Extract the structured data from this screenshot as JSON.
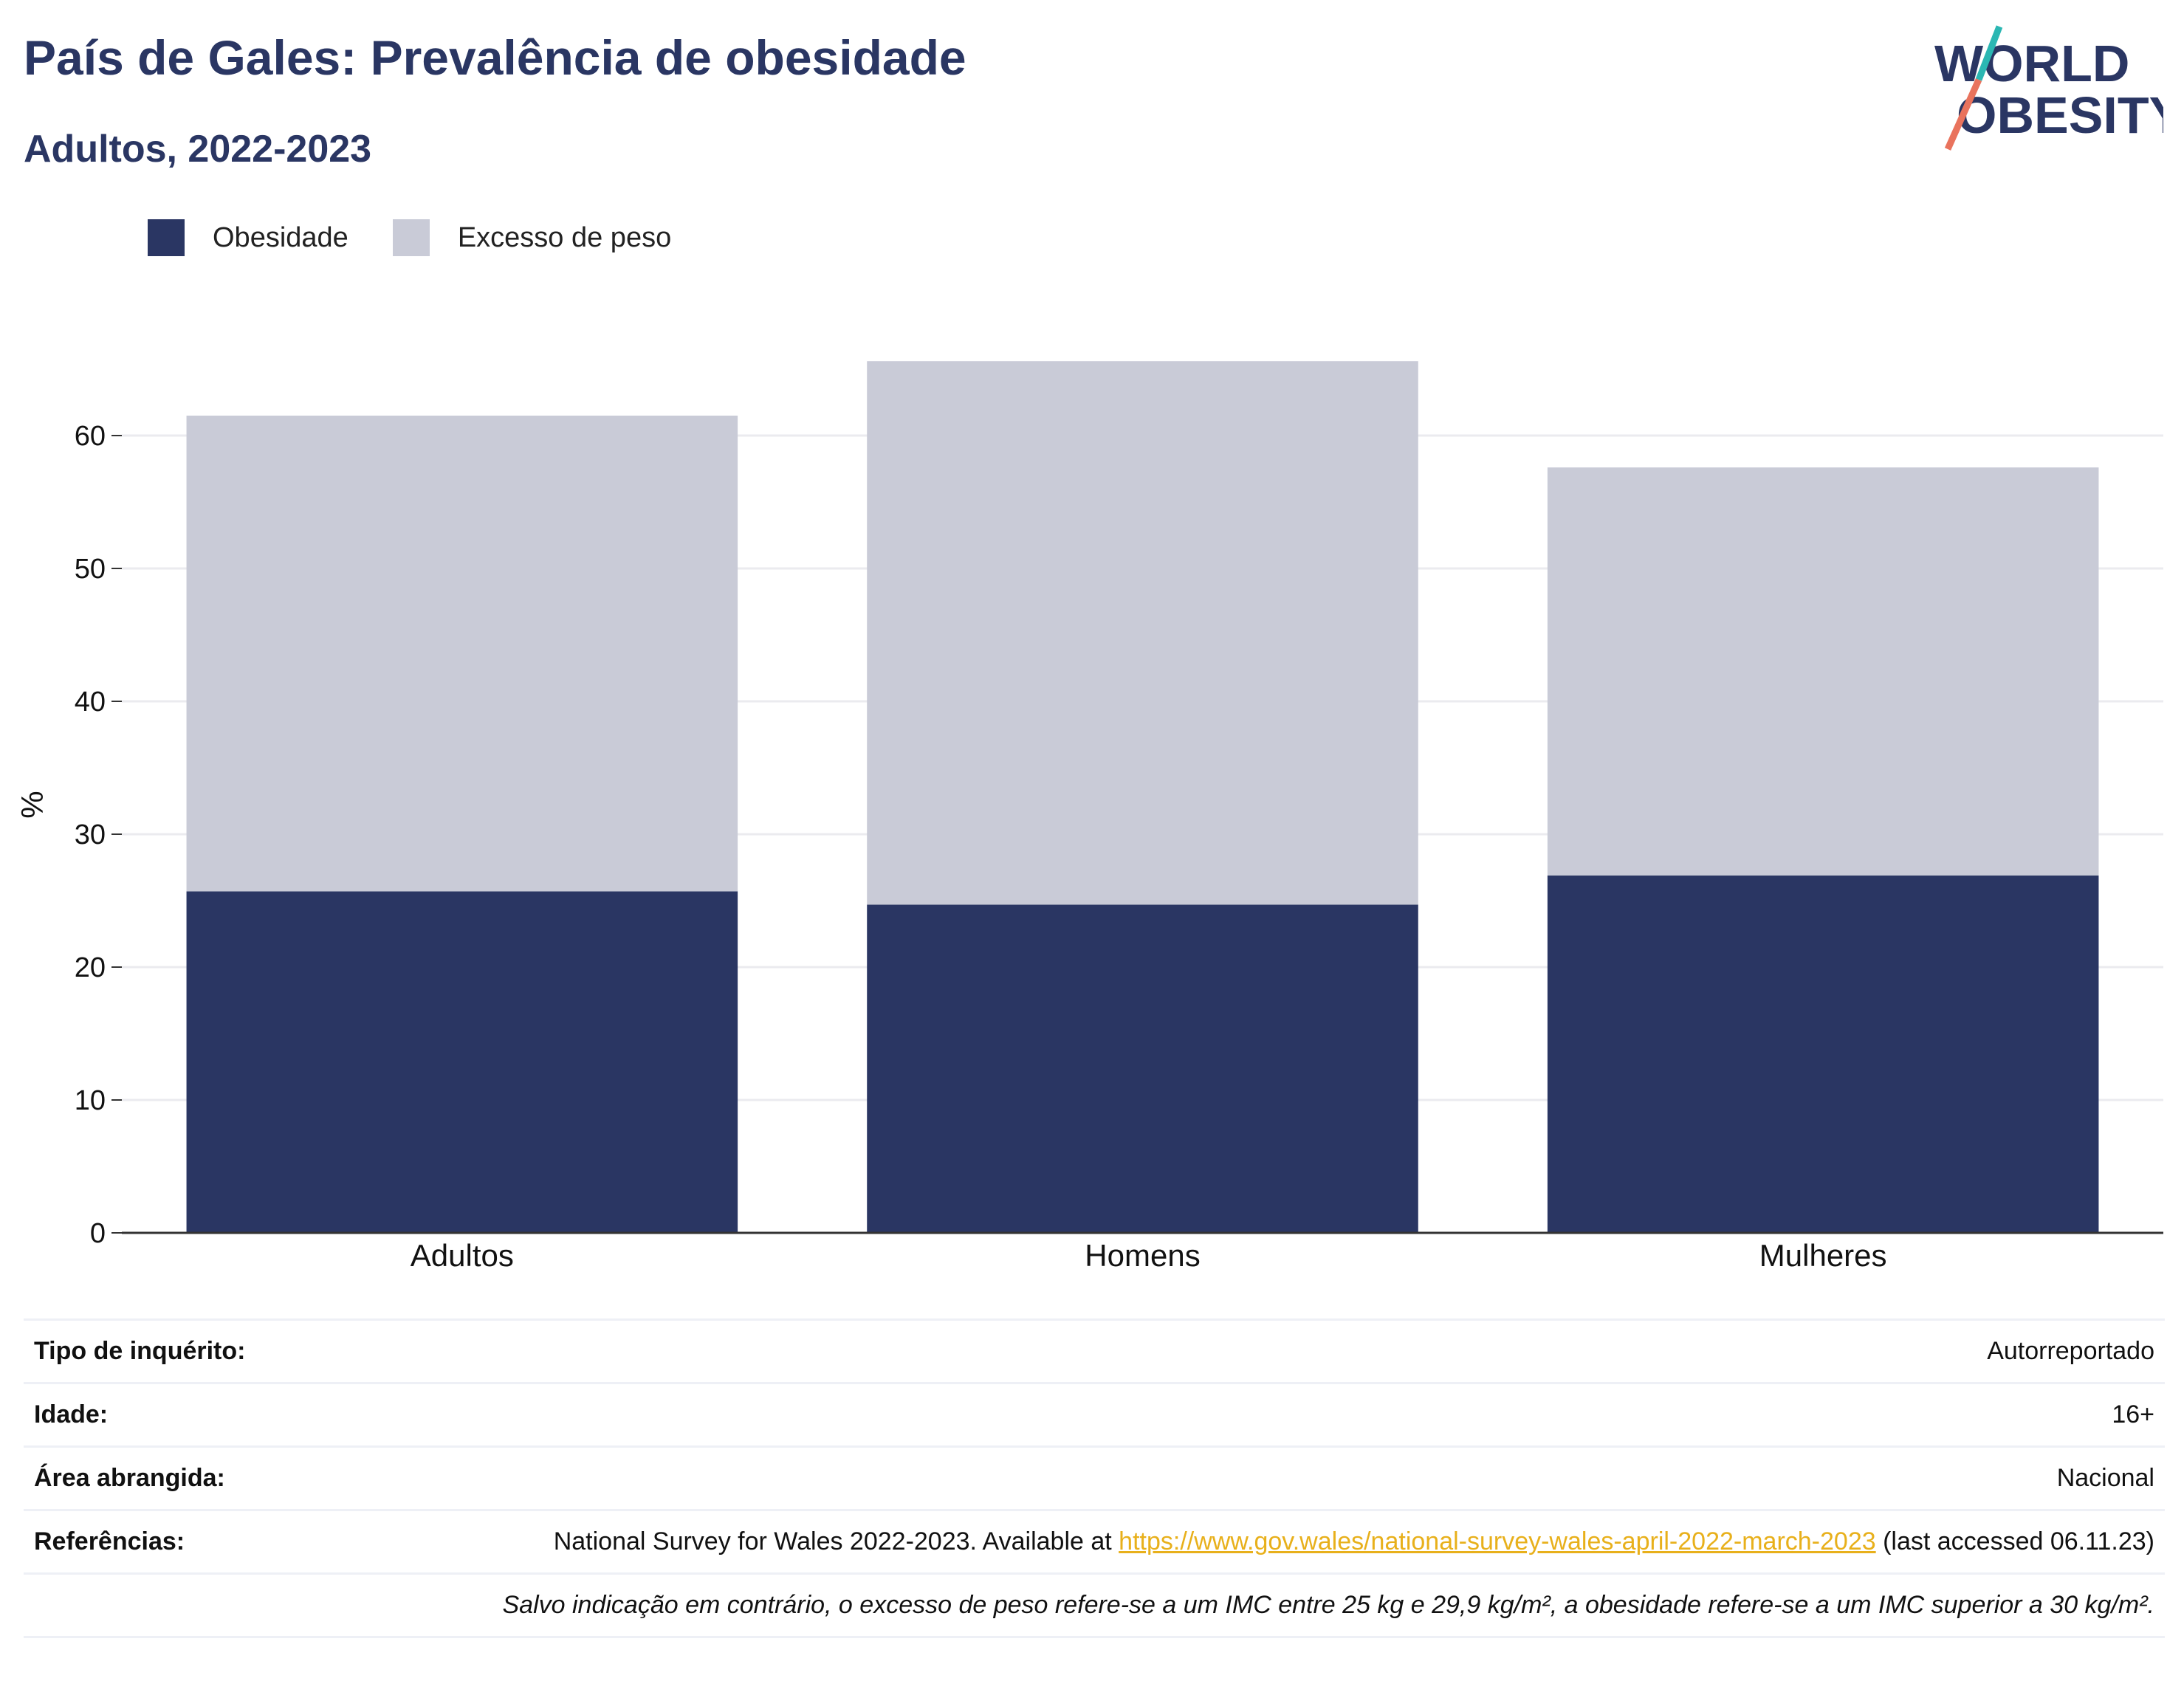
{
  "header": {
    "title": "País de Gales: Prevalência de obesidade",
    "subtitle": "Adultos, 2022-2023",
    "logo_line1": "WORLD",
    "logo_line2": "OBESITY"
  },
  "legend": {
    "items": [
      {
        "label": "Obesidade",
        "color": "#2a3663"
      },
      {
        "label": "Excesso de peso",
        "color": "#c9cbd7"
      }
    ]
  },
  "chart_data": {
    "type": "bar",
    "stacked": true,
    "categories": [
      "Adultos",
      "Homens",
      "Mulheres"
    ],
    "series": [
      {
        "name": "Obesidade",
        "values": [
          25.7,
          24.7,
          26.9
        ],
        "color": "#2a3663"
      },
      {
        "name": "Excesso de peso",
        "values": [
          35.8,
          40.9,
          30.7
        ],
        "color": "#c9cbd7"
      }
    ],
    "ylabel": "%",
    "ylim": [
      0,
      70
    ],
    "yticks": [
      0,
      10,
      20,
      30,
      40,
      50,
      60
    ],
    "grid": true,
    "legend_position": "top-left"
  },
  "info": {
    "rows": [
      {
        "key": "Tipo de inquérito:",
        "value": "Autorreportado"
      },
      {
        "key": "Idade:",
        "value": "16+"
      },
      {
        "key": "Área abrangida:",
        "value": "Nacional"
      }
    ],
    "references": {
      "key": "Referências:",
      "text_before": "National Survey for Wales 2022-2023. Available at ",
      "link": "https://www.gov.wales/national-survey-wales-april-2022-march-2023",
      "text_after": " (last accessed 06.11.23)"
    },
    "note": "Salvo indicação em contrário, o excesso de peso refere-se a um IMC entre 25 kg e 29,9 kg/m², a obesidade refere-se a um IMC superior a 30 kg/m²."
  }
}
